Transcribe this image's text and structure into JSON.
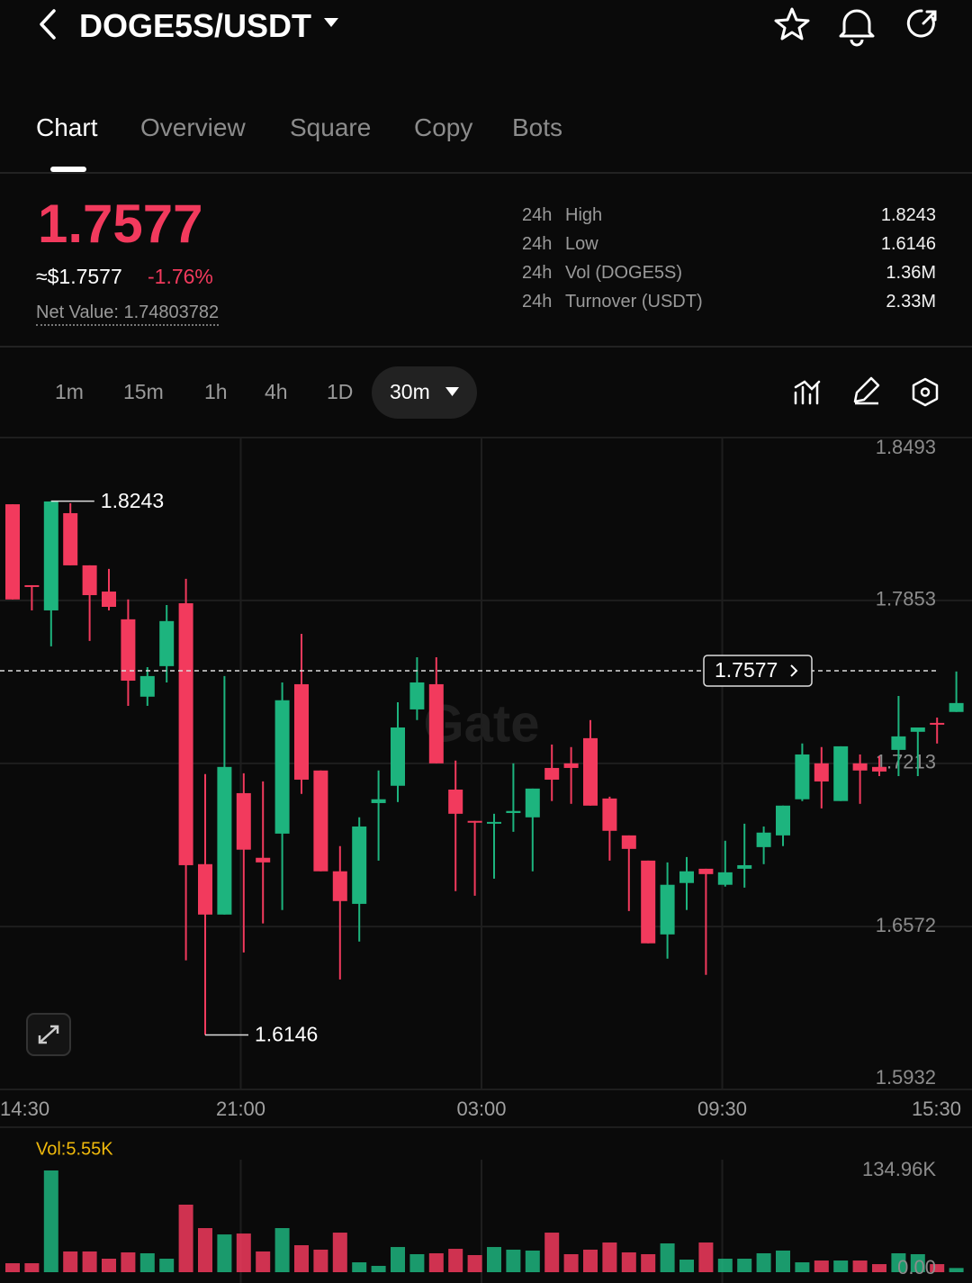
{
  "header": {
    "title": "DOGE5S/USDT"
  },
  "tabs": [
    "Chart",
    "Overview",
    "Square",
    "Copy",
    "Bots"
  ],
  "active_tab": 0,
  "ticker": {
    "price": "1.7577",
    "usd": "≈$1.7577",
    "change": "-1.76%",
    "net_value": "Net Value: 1.74803782"
  },
  "stats": [
    {
      "period": "24h",
      "label": "High",
      "value": "1.8243"
    },
    {
      "period": "24h",
      "label": "Low",
      "value": "1.6146"
    },
    {
      "period": "24h",
      "label": "Vol (DOGE5S)",
      "value": "1.36M"
    },
    {
      "period": "24h",
      "label": "Turnover (USDT)",
      "value": "2.33M"
    }
  ],
  "intervals": [
    "1m",
    "15m",
    "1h",
    "4h",
    "1D",
    "30m"
  ],
  "active_interval": 5,
  "chart_data": {
    "type": "candlestick",
    "watermark": "Gate",
    "up_color": "#1db47e",
    "down_color": "#f23a5d",
    "open": [
      1.8231,
      1.7913,
      1.7814,
      1.8196,
      1.7991,
      1.7888,
      1.7779,
      1.7475,
      1.7595,
      1.7842,
      1.6817,
      1.6619,
      1.7096,
      1.6842,
      1.6937,
      1.7524,
      1.7185,
      1.6789,
      1.6661,
      1.7057,
      1.7125,
      1.7425,
      1.7524,
      1.711,
      1.6987,
      1.6976,
      1.7018,
      1.7001,
      1.7195,
      1.7213,
      1.7312,
      1.7075,
      1.693,
      1.6831,
      1.6541,
      1.6743,
      1.6799,
      1.6736,
      1.6799,
      1.6884,
      1.693,
      1.7072,
      1.7213,
      1.7065,
      1.7213,
      1.7199,
      1.7266,
      1.7337,
      1.7372,
      1.7415
    ],
    "high": [
      1.8231,
      1.7913,
      1.8243,
      1.8235,
      1.7991,
      1.7977,
      1.7857,
      1.7591,
      1.7835,
      1.7938,
      1.7171,
      1.7556,
      1.7174,
      1.7142,
      1.7531,
      1.7722,
      1.7185,
      1.6888,
      1.7001,
      1.7185,
      1.7453,
      1.763,
      1.763,
      1.7224,
      1.6987,
      1.7015,
      1.7213,
      1.7114,
      1.7287,
      1.7277,
      1.7383,
      1.7082,
      1.693,
      1.6831,
      1.6824,
      1.6845,
      1.6799,
      1.6909,
      1.6976,
      1.6965,
      1.7047,
      1.7291,
      1.7277,
      1.728,
      1.7248,
      1.7241,
      1.7478,
      1.7354,
      1.7393,
      1.7574
    ],
    "low": [
      1.7857,
      1.7814,
      1.7673,
      1.7991,
      1.7694,
      1.7814,
      1.7439,
      1.7439,
      1.7531,
      1.6439,
      1.6146,
      1.6619,
      1.647,
      1.6584,
      1.6637,
      1.7093,
      1.6789,
      1.6364,
      1.6513,
      1.6831,
      1.7061,
      1.7383,
      1.7213,
      1.6711,
      1.6693,
      1.676,
      1.6944,
      1.6789,
      1.7065,
      1.7054,
      1.7047,
      1.6831,
      1.6633,
      1.6506,
      1.6446,
      1.6637,
      1.6382,
      1.6729,
      1.6725,
      1.6817,
      1.6888,
      1.7065,
      1.7036,
      1.7065,
      1.7054,
      1.7163,
      1.7163,
      1.7163,
      1.7291,
      1.7415
    ],
    "close": [
      1.7857,
      1.7906,
      1.8242,
      1.7991,
      1.7874,
      1.7828,
      1.7538,
      1.7556,
      1.7772,
      1.6813,
      1.6619,
      1.7199,
      1.6874,
      1.6824,
      1.7461,
      1.7149,
      1.6789,
      1.6672,
      1.6965,
      1.7072,
      1.7354,
      1.7531,
      1.7213,
      1.7015,
      1.698,
      1.6983,
      1.7026,
      1.7114,
      1.7149,
      1.7195,
      1.7047,
      1.6948,
      1.6877,
      1.6506,
      1.6736,
      1.6789,
      1.6778,
      1.6785,
      1.6813,
      1.6941,
      1.7047,
      1.7248,
      1.7142,
      1.728,
      1.7185,
      1.7181,
      1.7319,
      1.7354,
      1.7365,
      1.745
    ],
    "ylim": [
      1.5932,
      1.8493
    ],
    "yticks": [
      1.8493,
      1.7853,
      1.7213,
      1.6572,
      1.5932
    ],
    "xticks": [
      "14:30",
      "21:00",
      "03:00",
      "09:30",
      "15:30"
    ],
    "last_price": 1.7577,
    "high_label": 1.8243,
    "low_label": 1.6146,
    "volume": {
      "label": "Vol:5.55K",
      "values": [
        11900,
        11900,
        134960,
        27500,
        27500,
        17900,
        26300,
        25100,
        17900,
        89600,
        58500,
        50100,
        51300,
        27500,
        58500,
        35800,
        29900,
        52500,
        13100,
        8400,
        33400,
        23900,
        25100,
        31000,
        22700,
        33400,
        29900,
        28700,
        52500,
        23900,
        29900,
        39400,
        26300,
        23900,
        38200,
        16700,
        39400,
        17900,
        17900,
        25100,
        28700,
        13100,
        15500,
        15500,
        15500,
        10700,
        25100,
        23900,
        10700,
        5550
      ],
      "ylim": [
        0,
        134960
      ],
      "yticks": [
        {
          "value": 134960,
          "label": "134.96K"
        },
        {
          "value": 0,
          "label": "0.00"
        }
      ]
    }
  }
}
